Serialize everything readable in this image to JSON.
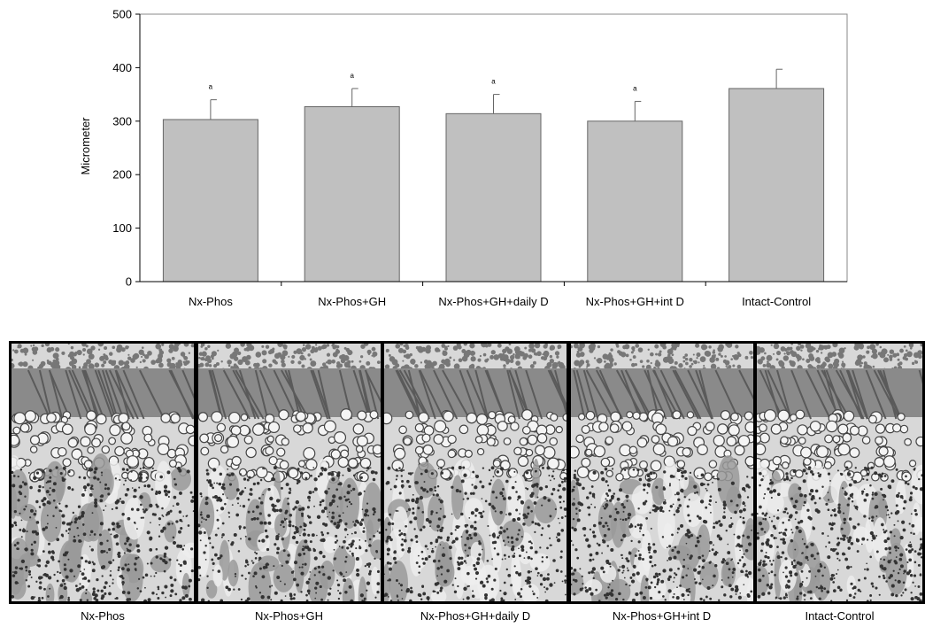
{
  "chart_data": {
    "type": "bar",
    "title": "",
    "xlabel": "",
    "ylabel": "Micrometer",
    "ylim": [
      0,
      500
    ],
    "yticks": [
      0,
      100,
      200,
      300,
      400,
      500
    ],
    "grid": false,
    "legend": "none",
    "categories": [
      "Nx-Phos",
      "Nx-Phos+GH",
      "Nx-Phos+GH+daily D",
      "Nx-Phos+GH+int D",
      "Intact-Control"
    ],
    "values": [
      303,
      327,
      314,
      300,
      361
    ],
    "error_upper": [
      37,
      34,
      36,
      37,
      36
    ],
    "annotations": [
      "a",
      "a",
      "a",
      "a",
      ""
    ],
    "bar_color": "#c0c0c0"
  },
  "micrographs": {
    "captions": [
      "Nx-Phos",
      "Nx-Phos+GH",
      "Nx-Phos+GH+daily D",
      "Nx-Phos+GH+int D",
      "Intact-Control"
    ],
    "tissue_color": "#8a8a8a"
  }
}
